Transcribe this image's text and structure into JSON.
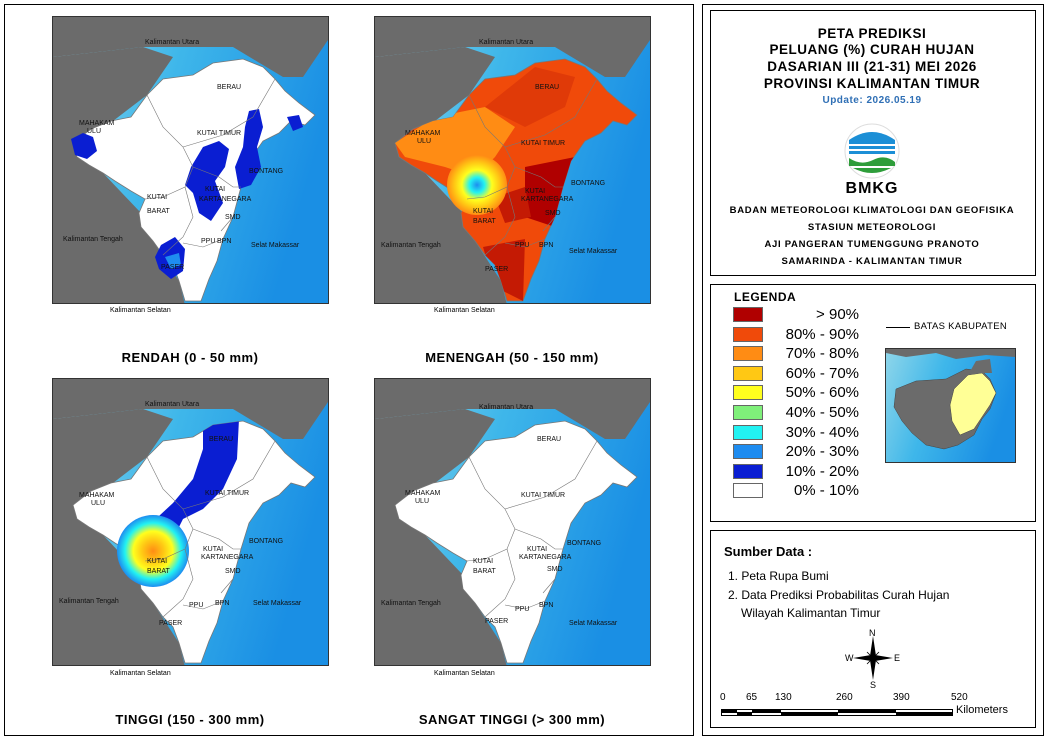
{
  "panels": [
    {
      "title": "RENDAH (0 - 50 mm)"
    },
    {
      "title": "MENENGAH (50 - 150 mm)"
    },
    {
      "title": "TINGGI (150 - 300 mm)"
    },
    {
      "title": "SANGAT TINGGI (> 300 mm)"
    }
  ],
  "map_labels": {
    "kaltara": "Kalimantan Utara",
    "berau": "BERAU",
    "mahakam": "MAHAKAM",
    "ulu": "ULU",
    "kutai_timur": "KUTAI TIMUR",
    "bontang": "BONTANG",
    "kutai": "KUTAI",
    "kartanegara": "KARTANEGARA",
    "barat": "BARAT",
    "smd": "SMD",
    "kalteng": "Kalimantan Tengah",
    "ppu": "PPU",
    "bpn": "BPN",
    "selat": "Selat Makassar",
    "paser": "PASER",
    "kalsel": "Kalimantan Selatan"
  },
  "title": {
    "line1": "PETA PREDIKSI",
    "line2": "PELUANG (%) CURAH HUJAN",
    "line3": "DASARIAN III (21-31) MEI 2026",
    "line4": "PROVINSI KALIMANTAN TIMUR",
    "update": "Update: 2026.05.19"
  },
  "logo_text": "BMKG",
  "institution": {
    "line1": "BADAN METEOROLOGI KLIMATOLOGI DAN GEOFISIKA",
    "line2": "STASIUN METEOROLOGI",
    "line3": "AJI PANGERAN TUMENGGUNG PRANOTO",
    "line4": "SAMARINDA - KALIMANTAN TIMUR"
  },
  "legend": {
    "title": "LEGENDA",
    "boundary_label": "BATAS KABUPATEN",
    "items": [
      {
        "label": "> 90%",
        "color": "#b00000"
      },
      {
        "label": "80% - 90%",
        "color": "#f04a0a"
      },
      {
        "label": "70% - 80%",
        "color": "#ff8c14"
      },
      {
        "label": "60% - 70%",
        "color": "#ffc814"
      },
      {
        "label": "50% - 60%",
        "color": "#ffff1e"
      },
      {
        "label": "40% - 50%",
        "color": "#7ff07a"
      },
      {
        "label": "30% - 40%",
        "color": "#22f2f2"
      },
      {
        "label": "20% - 30%",
        "color": "#1e8cf0"
      },
      {
        "label": "10% - 20%",
        "color": "#0a1ed2"
      },
      {
        "label": "0% - 10%",
        "color": "#ffffff"
      }
    ]
  },
  "sources": {
    "title": "Sumber Data :",
    "item1": "1. Peta Rupa Bumi",
    "item2a": "2. Data Prediksi Probabilitas Curah Hujan",
    "item2b": "Wilayah Kalimantan Timur"
  },
  "compass": {
    "n": "N",
    "s": "S",
    "e": "E",
    "w": "W"
  },
  "scale": {
    "ticks": [
      "0",
      "65",
      "130",
      "260",
      "390",
      "520"
    ],
    "unit": "Kilometers"
  }
}
